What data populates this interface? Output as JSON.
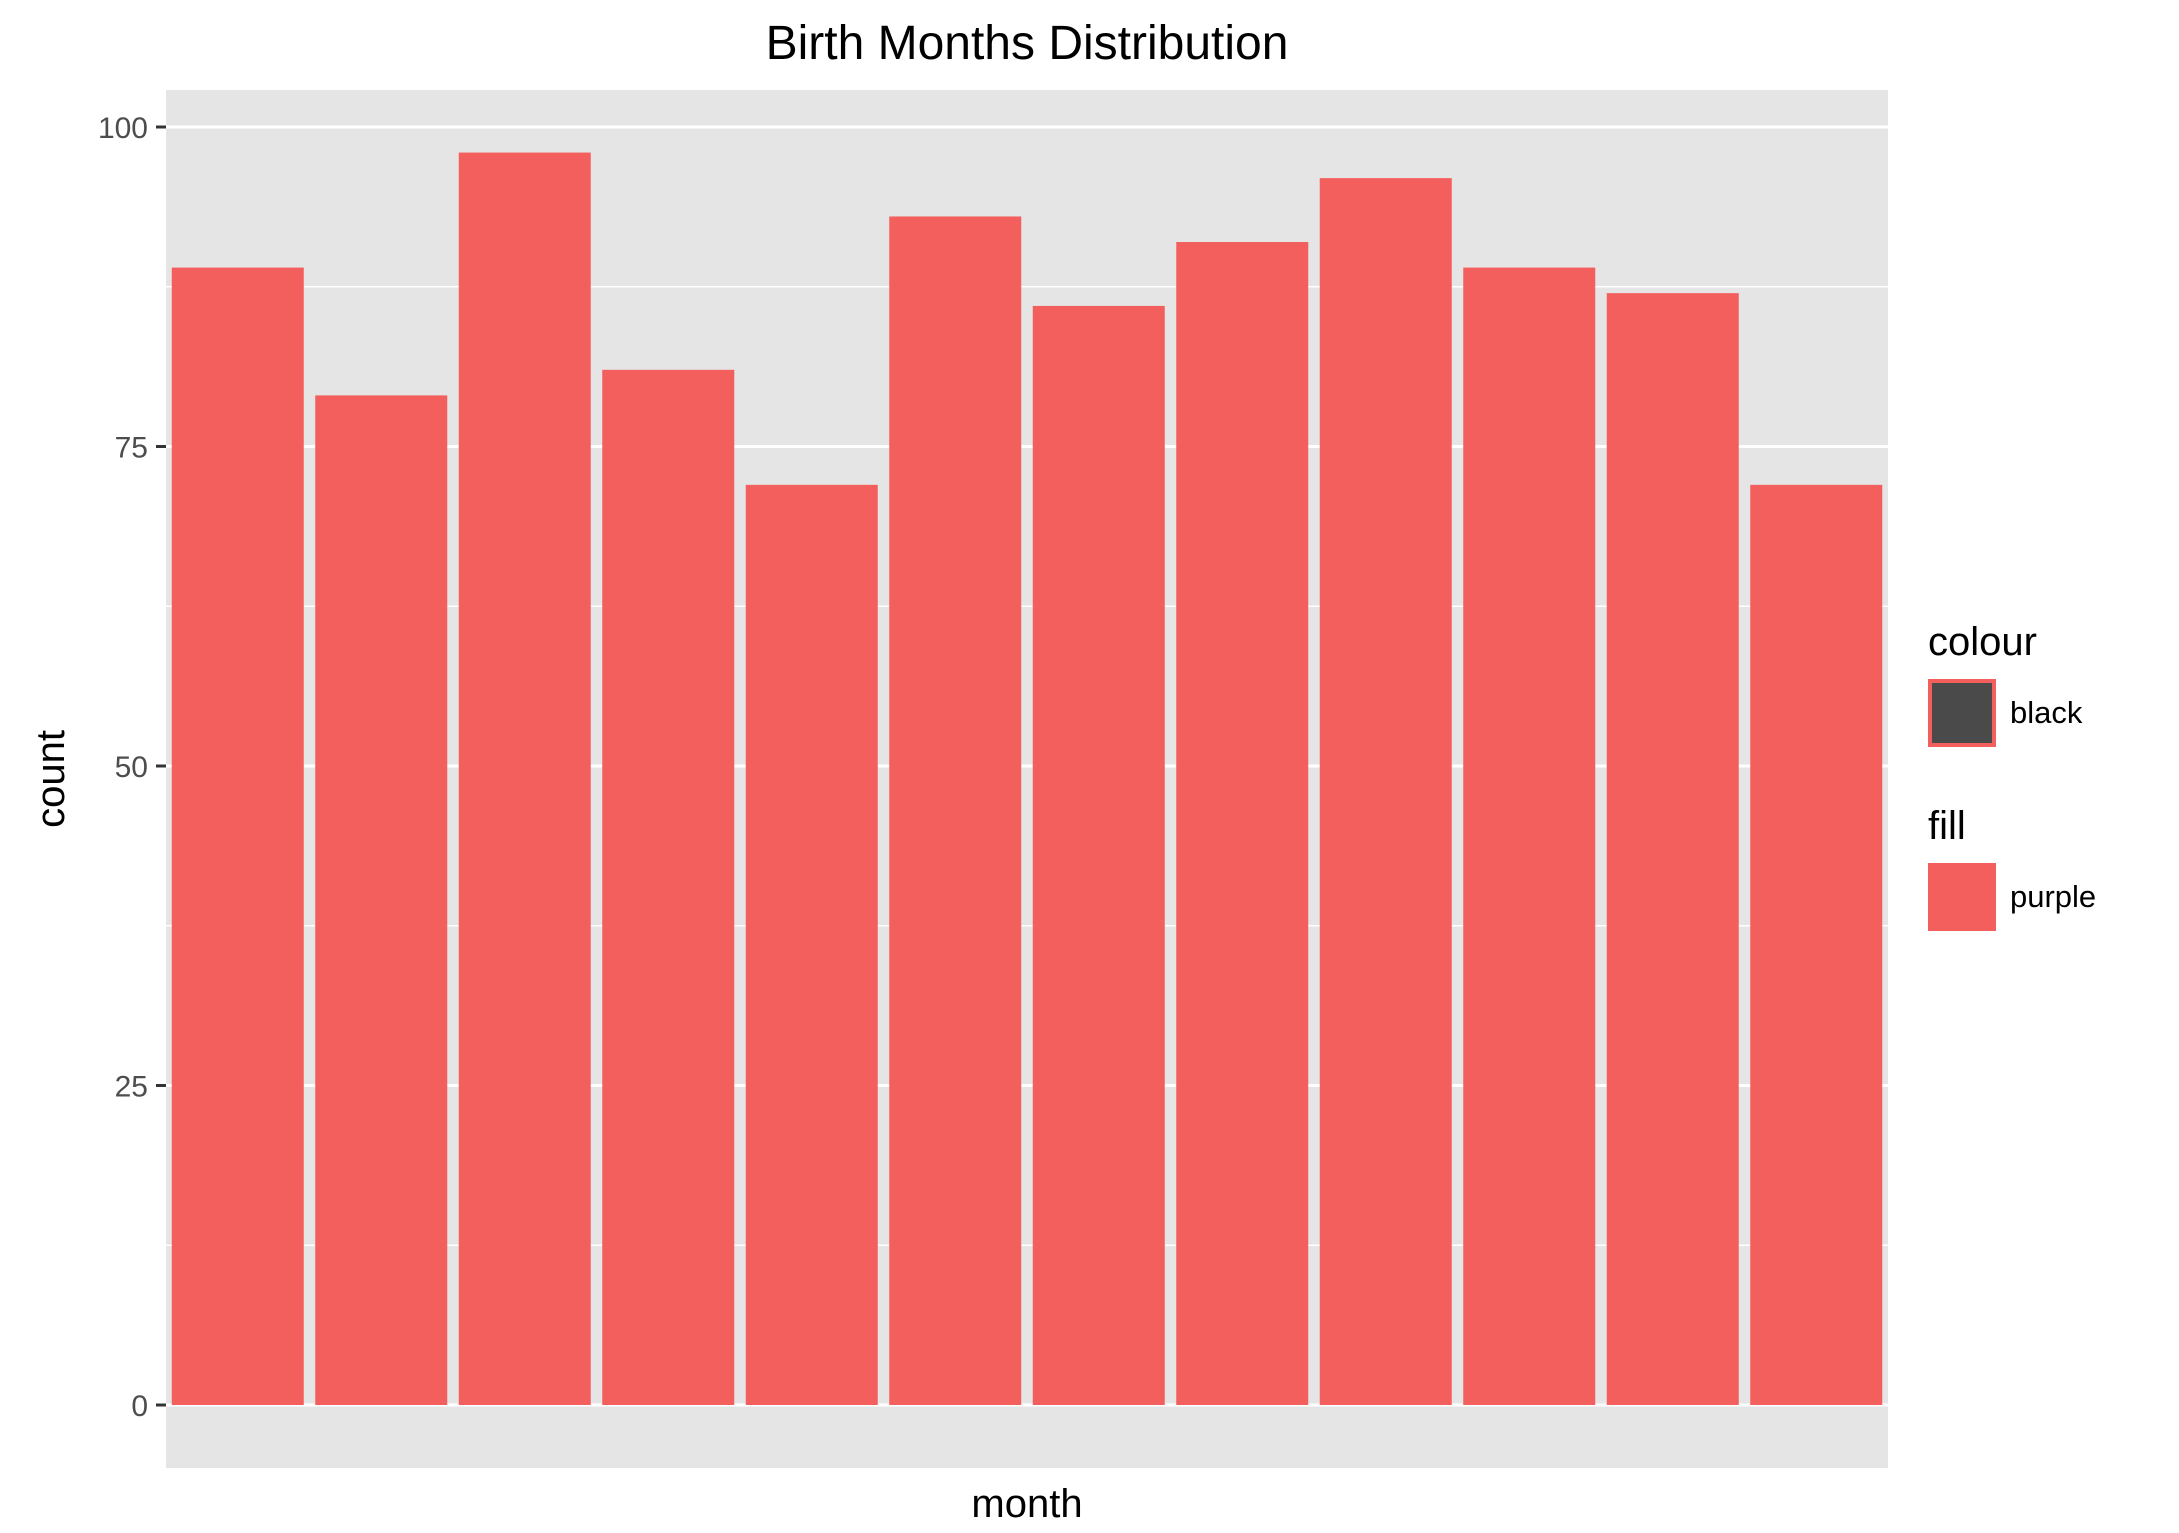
{
  "chart_data": {
    "type": "bar",
    "title": "Birth Months Distribution",
    "xlabel": "month",
    "ylabel": "count",
    "categories": [
      "",
      "",
      "",
      "",
      "",
      "",
      "",
      "",
      "",
      "",
      "",
      ""
    ],
    "values": [
      89,
      79,
      98,
      81,
      72,
      93,
      86,
      91,
      96,
      89,
      87,
      72
    ],
    "ylim": [
      0,
      100
    ],
    "yticks": [
      0,
      25,
      50,
      75,
      100
    ],
    "grid": true,
    "legend_position": "right",
    "legends": [
      {
        "title": "colour",
        "label": "black",
        "key_fill": "#4a4a4a",
        "key_border": "#f35f5c"
      },
      {
        "title": "fill",
        "label": "purple",
        "key_fill": "#f35f5c",
        "key_border": "#f35f5c"
      }
    ],
    "colors": {
      "bar": "#f35f5c",
      "panel": "#e5e5e5",
      "grid": "#ffffff"
    }
  }
}
